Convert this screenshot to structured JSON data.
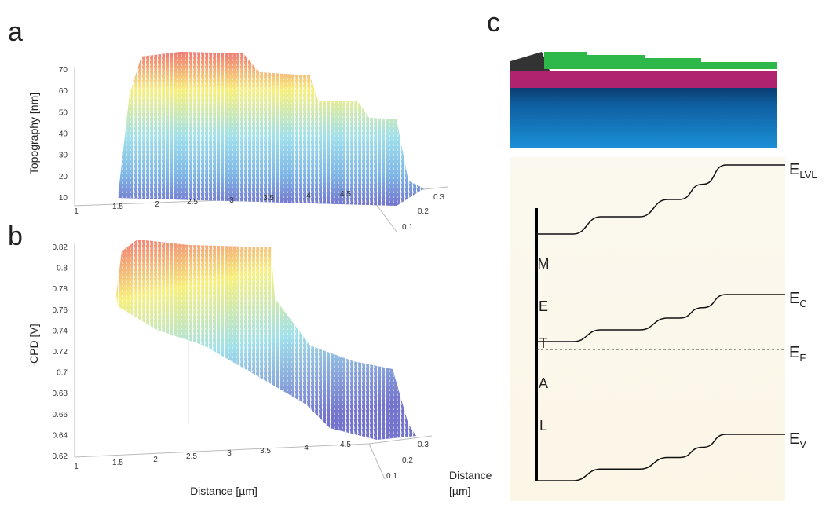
{
  "panels": [
    {
      "label": "a",
      "z_axis_label": "Topography [nm]",
      "z_ticks": [
        "70",
        "60",
        "50",
        "40",
        "30",
        "20",
        "10"
      ],
      "x_ticks": [
        "1",
        "1.5",
        "2",
        "2.5",
        "3",
        "3.5",
        "4",
        "4.5"
      ],
      "depth_ticks": [
        "0.1",
        "0.2",
        "0.3"
      ]
    },
    {
      "label": "b",
      "z_axis_label": "-CPD [V]",
      "z_ticks": [
        "0.82",
        "0.8",
        "0.78",
        "0.76",
        "0.74",
        "0.72",
        "0.7",
        "0.68",
        "0.66",
        "0.64",
        "0.62"
      ],
      "x_ticks": [
        "1",
        "1.5",
        "2",
        "2.5",
        "3",
        "3.5",
        "4",
        "4.5"
      ],
      "depth_ticks": [
        "0.1",
        "0.2",
        "0.3"
      ],
      "x_axis_label": "Distance [µm]",
      "depth_axis_label": [
        "Distance",
        "[µm]"
      ]
    },
    {
      "label": "c",
      "side_letters": [
        "M",
        "E",
        "T",
        "A",
        "L"
      ],
      "levels": [
        {
          "main": "E",
          "sub": "LVL"
        },
        {
          "main": "E",
          "sub": "C"
        },
        {
          "main": "E",
          "sub": "F"
        },
        {
          "main": "E",
          "sub": "V"
        }
      ]
    }
  ]
}
